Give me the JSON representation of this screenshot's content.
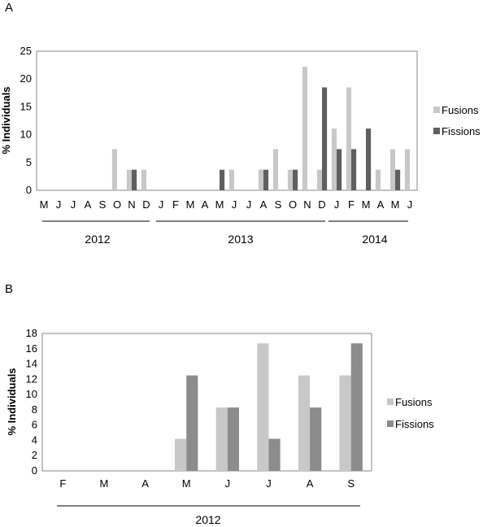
{
  "colors": {
    "fusions": "#c8c8c8",
    "fissions": "#5f5f5f",
    "fissions_b": "#8c8c8c"
  },
  "chart_data": [
    {
      "type": "bar",
      "panel_label": "A",
      "ylabel": "% Individuals",
      "ylim": [
        0,
        25
      ],
      "yticks": [
        "0",
        "5",
        "10",
        "15",
        "20",
        "25"
      ],
      "categories": [
        "M",
        "J",
        "J",
        "A",
        "S",
        "O",
        "N",
        "D",
        "J",
        "F",
        "M",
        "A",
        "M",
        "J",
        "J",
        "A",
        "S",
        "O",
        "N",
        "D",
        "J",
        "F",
        "M",
        "A",
        "M",
        "J"
      ],
      "series": [
        {
          "name": "Fusions",
          "values": [
            0,
            0,
            0,
            0,
            0,
            7.4,
            3.7,
            3.7,
            0,
            0,
            0,
            0,
            0,
            3.7,
            0,
            3.7,
            7.4,
            3.7,
            22.2,
            3.7,
            11.1,
            18.5,
            0,
            3.7,
            7.4,
            7.4
          ]
        },
        {
          "name": "Fissions",
          "values": [
            0,
            0,
            0,
            0,
            0,
            0,
            3.7,
            0,
            0,
            0,
            0,
            0,
            3.7,
            0,
            0,
            3.7,
            0,
            3.7,
            0,
            18.5,
            7.4,
            7.4,
            11.1,
            0,
            3.7,
            0
          ]
        }
      ],
      "year_labels": [
        "2012",
        "2013",
        "2014"
      ],
      "legend": "right",
      "grid": false
    },
    {
      "type": "bar",
      "panel_label": "B",
      "ylabel": "% Individuals",
      "ylim": [
        0,
        18
      ],
      "yticks": [
        "0",
        "2",
        "4",
        "6",
        "8",
        "10",
        "12",
        "14",
        "16",
        "18"
      ],
      "categories": [
        "F",
        "M",
        "A",
        "M",
        "J",
        "J",
        "A",
        "S"
      ],
      "series": [
        {
          "name": "Fusions",
          "values": [
            0,
            0,
            0,
            4.2,
            8.3,
            16.7,
            12.5,
            12.5
          ]
        },
        {
          "name": "Fissions",
          "values": [
            0,
            0,
            0,
            12.5,
            8.3,
            4.2,
            8.3,
            16.7
          ]
        }
      ],
      "year_labels": [
        "2012"
      ],
      "legend": "right",
      "grid": false
    }
  ]
}
